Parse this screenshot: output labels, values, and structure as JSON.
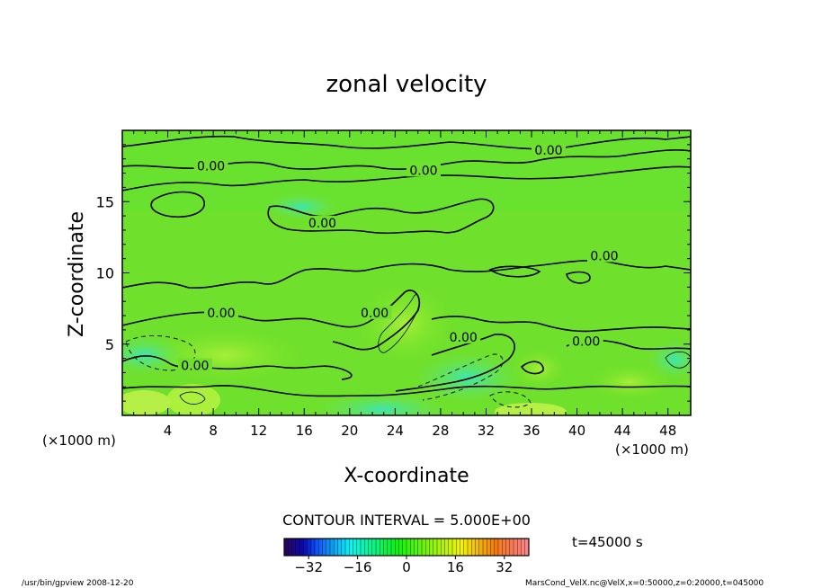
{
  "chart_data": {
    "type": "contour",
    "title": "zonal velocity",
    "xlabel": "X-coordinate",
    "ylabel": "Z-coordinate",
    "x_unit_left": "(×1000 m)",
    "x_unit_right": "(×1000 m)",
    "xlim": [
      0,
      50
    ],
    "ylim": [
      0,
      20
    ],
    "x_ticks": [
      4,
      8,
      12,
      16,
      20,
      24,
      28,
      32,
      36,
      40,
      44,
      48
    ],
    "y_ticks": [
      5,
      10,
      15
    ],
    "contour_interval_label": "CONTOUR INTERVAL = 5.000E+00",
    "contour_label": "0.00",
    "contour_label_points": [
      {
        "x": 7.8,
        "y": 17.5
      },
      {
        "x": 26.5,
        "y": 17.2
      },
      {
        "x": 37.5,
        "y": 18.6
      },
      {
        "x": 17.6,
        "y": 13.5
      },
      {
        "x": 42.4,
        "y": 11.2
      },
      {
        "x": 8.7,
        "y": 7.2
      },
      {
        "x": 22.2,
        "y": 7.2
      },
      {
        "x": 30.0,
        "y": 5.5
      },
      {
        "x": 40.8,
        "y": 5.2
      },
      {
        "x": 6.4,
        "y": 3.5
      }
    ],
    "colorbar": {
      "ticks": [
        -32,
        -16,
        0,
        16,
        32
      ],
      "range": [
        -40,
        40
      ]
    },
    "time_label": "t=45000 s",
    "footer_left": "/usr/bin/gpview   2008-12-20",
    "footer_right": "MarsCond_VelX.nc@VelX,x=0:50000,z=0:20000,t=045000"
  }
}
